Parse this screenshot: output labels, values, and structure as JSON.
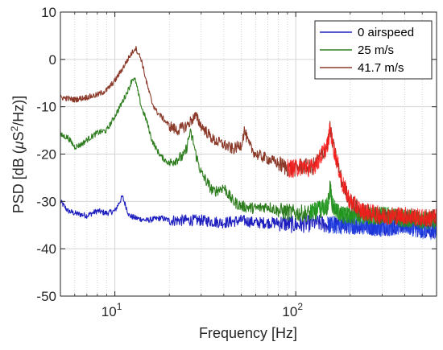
{
  "chart_data": {
    "type": "line",
    "xlabel": "Frequency [Hz]",
    "ylabel_main": "PSD [dB (",
    "ylabel_mu": "μ",
    "ylabel_s": "S",
    "ylabel_exp": "2",
    "ylabel_tail": "/Hz)]",
    "xscale": "log",
    "xlim": [
      5,
      600
    ],
    "ylim": [
      -50,
      10
    ],
    "grid": true,
    "legend_position": "top-right",
    "y_ticks": [
      {
        "value": 10,
        "label": "10"
      },
      {
        "value": 0,
        "label": "0"
      },
      {
        "value": -10,
        "label": "-10"
      },
      {
        "value": -20,
        "label": "-20"
      },
      {
        "value": -30,
        "label": "-30"
      },
      {
        "value": -40,
        "label": "-40"
      },
      {
        "value": -50,
        "label": "-50"
      }
    ],
    "x_ticks": [
      {
        "value": 10,
        "base": "10",
        "exp": "1"
      },
      {
        "value": 100,
        "base": "10",
        "exp": "2"
      }
    ],
    "series": [
      {
        "name": "0 airspeed",
        "color": "#1f1fbf",
        "noise_color": "#1f3fe0",
        "points": [
          [
            5,
            -30
          ],
          [
            5.5,
            -32
          ],
          [
            6,
            -32.5
          ],
          [
            7,
            -33
          ],
          [
            8,
            -32
          ],
          [
            9,
            -32.5
          ],
          [
            10,
            -32
          ],
          [
            11,
            -29
          ],
          [
            11.5,
            -31
          ],
          [
            12,
            -33
          ],
          [
            13,
            -33.5
          ],
          [
            15,
            -34
          ],
          [
            18,
            -33.5
          ],
          [
            20,
            -34
          ],
          [
            25,
            -34
          ],
          [
            30,
            -34
          ],
          [
            40,
            -34.5
          ],
          [
            50,
            -34
          ],
          [
            60,
            -34.5
          ],
          [
            80,
            -34.5
          ],
          [
            100,
            -35
          ],
          [
            130,
            -34.5
          ],
          [
            150,
            -35
          ],
          [
            200,
            -35
          ],
          [
            300,
            -35.5
          ],
          [
            400,
            -35
          ],
          [
            500,
            -36
          ],
          [
            600,
            -36
          ]
        ]
      },
      {
        "name": "25 m/s",
        "color": "#2e7d1e",
        "noise_color": "#1e9a1e",
        "points": [
          [
            5,
            -16
          ],
          [
            5.5,
            -16.5
          ],
          [
            6,
            -18.5
          ],
          [
            6.5,
            -18
          ],
          [
            7,
            -17
          ],
          [
            8,
            -15.5
          ],
          [
            9,
            -15
          ],
          [
            10,
            -12
          ],
          [
            11,
            -9
          ],
          [
            12,
            -6
          ],
          [
            12.5,
            -4
          ],
          [
            13,
            -4.5
          ],
          [
            14,
            -10
          ],
          [
            15,
            -13
          ],
          [
            16,
            -17
          ],
          [
            17,
            -19
          ],
          [
            18,
            -20.5
          ],
          [
            20,
            -22
          ],
          [
            22,
            -21
          ],
          [
            24,
            -20.5
          ],
          [
            25,
            -18.5
          ],
          [
            26,
            -15.5
          ],
          [
            27,
            -17
          ],
          [
            28,
            -20
          ],
          [
            30,
            -24
          ],
          [
            35,
            -28
          ],
          [
            40,
            -27
          ],
          [
            45,
            -30
          ],
          [
            50,
            -31
          ],
          [
            60,
            -31.5
          ],
          [
            70,
            -31
          ],
          [
            80,
            -32
          ],
          [
            100,
            -32.5
          ],
          [
            120,
            -32.5
          ],
          [
            140,
            -31.5
          ],
          [
            150,
            -31
          ],
          [
            155,
            -27
          ],
          [
            160,
            -31
          ],
          [
            180,
            -33
          ],
          [
            200,
            -33
          ],
          [
            250,
            -33
          ],
          [
            300,
            -33
          ],
          [
            400,
            -33.5
          ],
          [
            500,
            -34
          ],
          [
            600,
            -34
          ]
        ]
      },
      {
        "name": "41.7 m/s",
        "color": "#8b3a2a",
        "noise_color": "#ff1a1a",
        "points": [
          [
            5,
            -8
          ],
          [
            6,
            -8.5
          ],
          [
            7,
            -8
          ],
          [
            8,
            -7.5
          ],
          [
            9,
            -6.5
          ],
          [
            10,
            -4.5
          ],
          [
            11,
            -2
          ],
          [
            12,
            0.5
          ],
          [
            13,
            2.5
          ],
          [
            14,
            0
          ],
          [
            15,
            -5
          ],
          [
            16,
            -9
          ],
          [
            17,
            -11
          ],
          [
            18,
            -12
          ],
          [
            20,
            -14
          ],
          [
            22,
            -15
          ],
          [
            25,
            -14
          ],
          [
            27,
            -12.5
          ],
          [
            28,
            -12
          ],
          [
            30,
            -14
          ],
          [
            35,
            -17
          ],
          [
            40,
            -18
          ],
          [
            45,
            -19
          ],
          [
            50,
            -18
          ],
          [
            52,
            -15
          ],
          [
            55,
            -18
          ],
          [
            60,
            -20
          ],
          [
            70,
            -21
          ],
          [
            80,
            -22
          ],
          [
            90,
            -23
          ],
          [
            100,
            -23
          ],
          [
            110,
            -22.5
          ],
          [
            120,
            -23
          ],
          [
            130,
            -22
          ],
          [
            140,
            -20
          ],
          [
            150,
            -18
          ],
          [
            155,
            -14.5
          ],
          [
            160,
            -18
          ],
          [
            170,
            -22
          ],
          [
            180,
            -26
          ],
          [
            200,
            -30
          ],
          [
            230,
            -32
          ],
          [
            300,
            -33
          ],
          [
            400,
            -33
          ],
          [
            500,
            -33.5
          ],
          [
            600,
            -33.5
          ]
        ]
      }
    ]
  }
}
